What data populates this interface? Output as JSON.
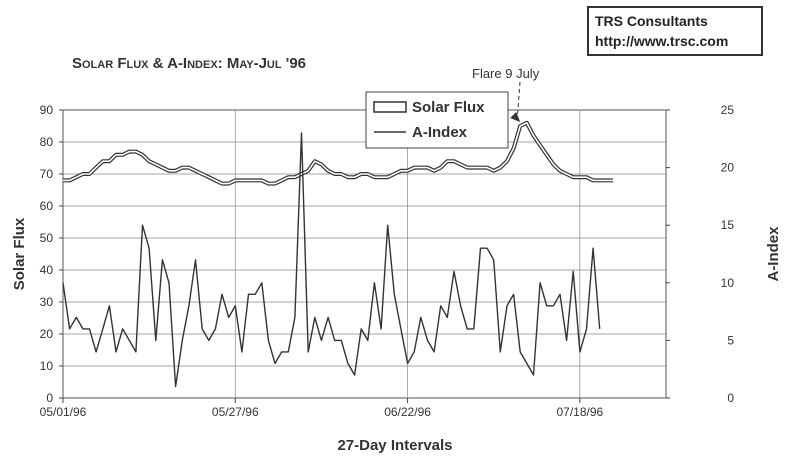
{
  "credit": {
    "line1": "TRS Consultants",
    "line2": "http://www.trsc.com"
  },
  "chart_data": {
    "type": "line",
    "title": "Solar Flux & A-Index: May-Jul '96",
    "xlabel": "27-Day Intervals",
    "ylabel": "Solar Flux",
    "y2label": "A-Index",
    "ylim": [
      0,
      90
    ],
    "y2lim": [
      0,
      25
    ],
    "yticks": [
      0,
      10,
      20,
      30,
      40,
      50,
      60,
      70,
      80,
      90
    ],
    "y2ticks": [
      0,
      5,
      10,
      15,
      20,
      25
    ],
    "x_tick_labels": [
      "05/01/96",
      "05/27/96",
      "06/22/96",
      "07/18/96"
    ],
    "x_tick_days": [
      0,
      26,
      52,
      78
    ],
    "x_range_days": [
      0,
      91
    ],
    "x_start": "05/01/96",
    "grid": true,
    "legend_position": "top-center",
    "annotation": {
      "text": "Flare 9 July",
      "day": 69
    },
    "series": [
      {
        "name": "Solar Flux",
        "axis": "left",
        "color": "#333333",
        "style": "double",
        "values": [
          68,
          68,
          69,
          70,
          70,
          72,
          74,
          74,
          76,
          76,
          77,
          77,
          76,
          74,
          73,
          72,
          71,
          71,
          72,
          72,
          71,
          70,
          69,
          68,
          67,
          67,
          68,
          68,
          68,
          68,
          68,
          67,
          67,
          68,
          69,
          69,
          70,
          71,
          74,
          73,
          71,
          70,
          70,
          69,
          69,
          70,
          70,
          69,
          69,
          69,
          70,
          71,
          71,
          72,
          72,
          72,
          71,
          72,
          74,
          74,
          73,
          72,
          72,
          72,
          72,
          71,
          72,
          74,
          78,
          85,
          86,
          82,
          79,
          76,
          73,
          71,
          70,
          69,
          69,
          69,
          68,
          68,
          68,
          68
        ]
      },
      {
        "name": "A-Index",
        "axis": "right",
        "color": "#333333",
        "style": "single",
        "values": [
          10,
          6,
          7,
          6,
          6,
          4,
          6,
          8,
          4,
          6,
          5,
          4,
          15,
          13,
          5,
          12,
          10,
          1,
          5,
          8,
          12,
          6,
          5,
          6,
          9,
          7,
          8,
          4,
          9,
          9,
          10,
          5,
          3,
          4,
          4,
          7,
          23,
          4,
          7,
          5,
          7,
          5,
          5,
          3,
          2,
          6,
          5,
          10,
          6,
          15,
          9,
          6,
          3,
          4,
          7,
          5,
          4,
          8,
          7,
          11,
          8,
          6,
          6,
          13,
          13,
          12,
          4,
          8,
          9,
          4,
          3,
          2,
          10,
          8,
          8,
          9,
          5,
          11,
          4,
          6,
          13,
          6
        ]
      }
    ]
  }
}
